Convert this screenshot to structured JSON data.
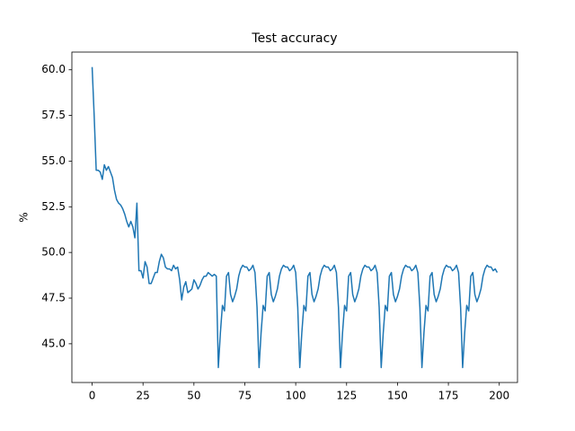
{
  "chart_data": {
    "type": "line",
    "title": "Test accuracy",
    "y_label": "%",
    "color": "#1f77b4",
    "x": [
      0,
      1,
      2,
      3,
      4,
      5,
      6,
      7,
      8,
      9,
      10,
      11,
      12,
      13,
      14,
      15,
      16,
      17,
      18,
      19,
      20,
      21,
      22,
      23,
      24,
      25,
      26,
      27,
      28,
      29,
      30,
      31,
      32,
      33,
      34,
      35,
      36,
      37,
      38,
      39,
      40,
      41,
      42,
      43,
      44,
      45,
      46,
      47,
      48,
      49,
      50,
      51,
      52,
      53,
      54,
      55,
      56,
      57,
      58,
      59,
      60,
      61,
      62,
      63,
      64,
      65,
      66,
      67,
      68,
      69,
      70,
      71,
      72,
      73,
      74,
      75,
      76,
      77,
      78,
      79,
      80,
      81,
      82,
      83,
      84,
      85,
      86,
      87,
      88,
      89,
      90,
      91,
      92,
      93,
      94,
      95,
      96,
      97,
      98,
      99,
      100,
      101,
      102,
      103,
      104,
      105,
      106,
      107,
      108,
      109,
      110,
      111,
      112,
      113,
      114,
      115,
      116,
      117,
      118,
      119,
      120,
      121,
      122,
      123,
      124,
      125,
      126,
      127,
      128,
      129,
      130,
      131,
      132,
      133,
      134,
      135,
      136,
      137,
      138,
      139,
      140,
      141,
      142,
      143,
      144,
      145,
      146,
      147,
      148,
      149,
      150,
      151,
      152,
      153,
      154,
      155,
      156,
      157,
      158,
      159,
      160,
      161,
      162,
      163,
      164,
      165,
      166,
      167,
      168,
      169,
      170,
      171,
      172,
      173,
      174,
      175,
      176,
      177,
      178,
      179,
      180,
      181,
      182,
      183,
      184,
      185,
      186,
      187,
      188,
      189,
      190,
      191,
      192,
      193,
      194,
      195,
      196,
      197,
      198,
      199
    ],
    "values": [
      60.15,
      57.5,
      54.5,
      54.5,
      54.4,
      54.0,
      54.8,
      54.5,
      54.7,
      54.4,
      54.1,
      53.4,
      52.9,
      52.7,
      52.6,
      52.4,
      52.1,
      51.7,
      51.4,
      51.7,
      51.4,
      50.8,
      52.7,
      49.0,
      49.0,
      48.6,
      49.5,
      49.2,
      48.3,
      48.3,
      48.6,
      48.9,
      48.9,
      49.5,
      49.9,
      49.7,
      49.2,
      49.1,
      49.1,
      49.0,
      49.3,
      49.1,
      49.2,
      48.5,
      47.4,
      48.1,
      48.4,
      47.8,
      47.9,
      48.0,
      48.5,
      48.3,
      48.0,
      48.2,
      48.5,
      48.7,
      48.7,
      48.9,
      48.8,
      48.7,
      48.8,
      48.7,
      43.7,
      45.6,
      47.1,
      46.8,
      48.7,
      48.9,
      47.7,
      47.3,
      47.6,
      48.0,
      48.7,
      49.1,
      49.3,
      49.2,
      49.2,
      49.0,
      49.1,
      49.3,
      48.9,
      47.0,
      43.7,
      45.6,
      47.1,
      46.8,
      48.7,
      48.9,
      47.7,
      47.3,
      47.6,
      48.0,
      48.7,
      49.1,
      49.3,
      49.2,
      49.2,
      49.0,
      49.1,
      49.3,
      48.9,
      47.0,
      43.7,
      45.6,
      47.1,
      46.8,
      48.7,
      48.9,
      47.7,
      47.3,
      47.6,
      48.0,
      48.7,
      49.1,
      49.3,
      49.2,
      49.2,
      49.0,
      49.1,
      49.3,
      48.9,
      47.0,
      43.7,
      45.6,
      47.1,
      46.8,
      48.7,
      48.9,
      47.7,
      47.3,
      47.6,
      48.0,
      48.7,
      49.1,
      49.3,
      49.2,
      49.2,
      49.0,
      49.1,
      49.3,
      48.9,
      47.0,
      43.7,
      45.6,
      47.1,
      46.8,
      48.7,
      48.9,
      47.7,
      47.3,
      47.6,
      48.0,
      48.7,
      49.1,
      49.3,
      49.2,
      49.2,
      49.0,
      49.1,
      49.3,
      48.9,
      47.0,
      43.7,
      45.6,
      47.1,
      46.8,
      48.7,
      48.9,
      47.7,
      47.3,
      47.6,
      48.0,
      48.7,
      49.1,
      49.3,
      49.2,
      49.2,
      49.0,
      49.1,
      49.3,
      48.9,
      47.0,
      43.7,
      45.6,
      47.1,
      46.8,
      48.7,
      48.9,
      47.7,
      47.3,
      47.6,
      48.0,
      48.7,
      49.1,
      49.3,
      49.2,
      49.2,
      49.0,
      49.1,
      48.9
    ],
    "xlim": [
      -9.95,
      208.95
    ],
    "ylim": [
      42.88,
      60.97
    ],
    "xticks": [
      0,
      25,
      50,
      75,
      100,
      125,
      150,
      175,
      200
    ],
    "yticks": [
      {
        "value": 45,
        "label": "45.0"
      },
      47.5,
      {
        "value": 50,
        "label": "50.0"
      },
      52.5,
      {
        "value": 55,
        "label": "55.0"
      },
      57.5,
      {
        "value": 60,
        "label": "60.0"
      }
    ]
  }
}
